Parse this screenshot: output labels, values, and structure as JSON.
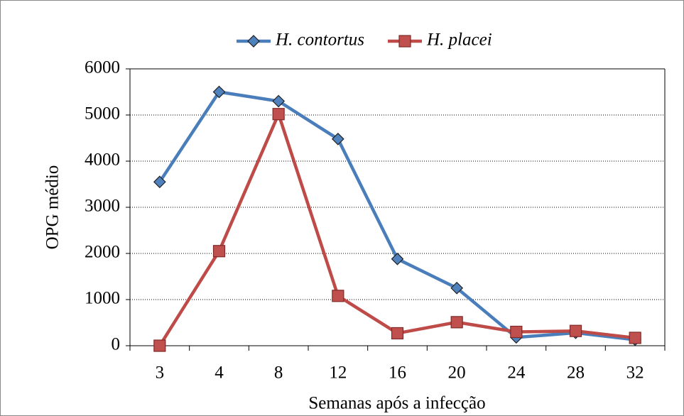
{
  "chart_data": {
    "type": "line",
    "x_label": "Semanas após a infecção",
    "y_label": "OPG médio",
    "categories": [
      "3",
      "4",
      "8",
      "12",
      "16",
      "20",
      "24",
      "28",
      "32"
    ],
    "series": [
      {
        "name": "H. contortus",
        "color": "#4a7ebb",
        "marker": "diamond",
        "marker_color": "#4f81bd",
        "values": [
          3550,
          5500,
          5300,
          4480,
          1880,
          1250,
          180,
          280,
          130
        ]
      },
      {
        "name": "H. placei",
        "color": "#be4b48",
        "marker": "square",
        "marker_color": "#c0504d",
        "values": [
          0,
          2050,
          5020,
          1080,
          270,
          510,
          300,
          320,
          170
        ]
      }
    ],
    "ylim": [
      0,
      6000
    ],
    "yticks": [
      0,
      1000,
      2000,
      3000,
      4000,
      5000,
      6000
    ],
    "grid": true,
    "legend": "top"
  }
}
